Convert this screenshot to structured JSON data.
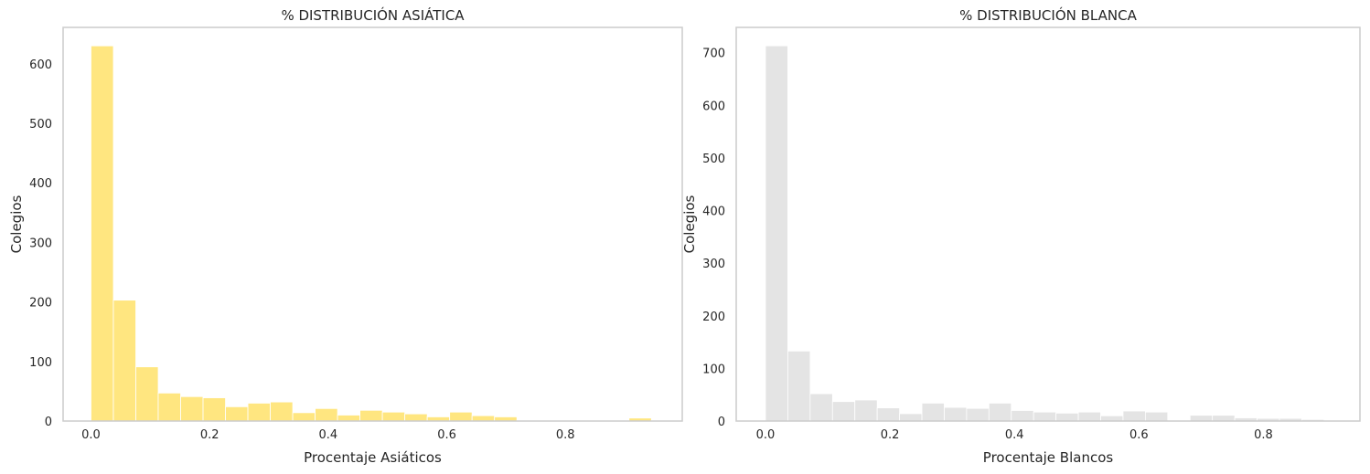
{
  "chart_data": [
    {
      "type": "bar",
      "title": "% DISTRIBUCIÓN ASIÁTICA",
      "xlabel": "Procentaje Asiáticos",
      "ylabel": "Colegios",
      "color": "#ffe680",
      "xlim": [
        -0.047,
        0.997
      ],
      "ylim": [
        0,
        661
      ],
      "xticks": [
        0.0,
        0.2,
        0.4,
        0.6,
        0.8
      ],
      "xtick_labels": [
        "0.0",
        "0.2",
        "0.4",
        "0.6",
        "0.8"
      ],
      "yticks": [
        0,
        100,
        200,
        300,
        400,
        500,
        600
      ],
      "ytick_labels": [
        "0",
        "100",
        "200",
        "300",
        "400",
        "500",
        "600"
      ],
      "bin_start": 0.0,
      "bin_width": 0.0378,
      "values": [
        630,
        203,
        91,
        47,
        41,
        39,
        24,
        30,
        32,
        14,
        21,
        10,
        18,
        15,
        12,
        7,
        15,
        9,
        7,
        1,
        1,
        0,
        0,
        0,
        5,
        1,
        1
      ],
      "grid": false
    },
    {
      "type": "bar",
      "title": "% DISTRIBUCIÓN BLANCA",
      "xlabel": "Procentaje Blancos",
      "ylabel": "Colegios",
      "color": "#e4e4e4",
      "xlim": [
        -0.047,
        0.955
      ],
      "ylim": [
        0,
        748
      ],
      "xticks": [
        0.0,
        0.2,
        0.4,
        0.6,
        0.8
      ],
      "xtick_labels": [
        "0.0",
        "0.2",
        "0.4",
        "0.6",
        "0.8"
      ],
      "yticks": [
        0,
        100,
        200,
        300,
        400,
        500,
        600,
        700
      ],
      "ytick_labels": [
        "0",
        "100",
        "200",
        "300",
        "400",
        "500",
        "600",
        "700"
      ],
      "bin_start": 0.0,
      "bin_width": 0.0359,
      "values": [
        713,
        133,
        52,
        37,
        40,
        25,
        14,
        34,
        26,
        24,
        34,
        20,
        17,
        15,
        17,
        10,
        19,
        17,
        0,
        11,
        11,
        6,
        5,
        5,
        3
      ],
      "grid": false
    }
  ]
}
